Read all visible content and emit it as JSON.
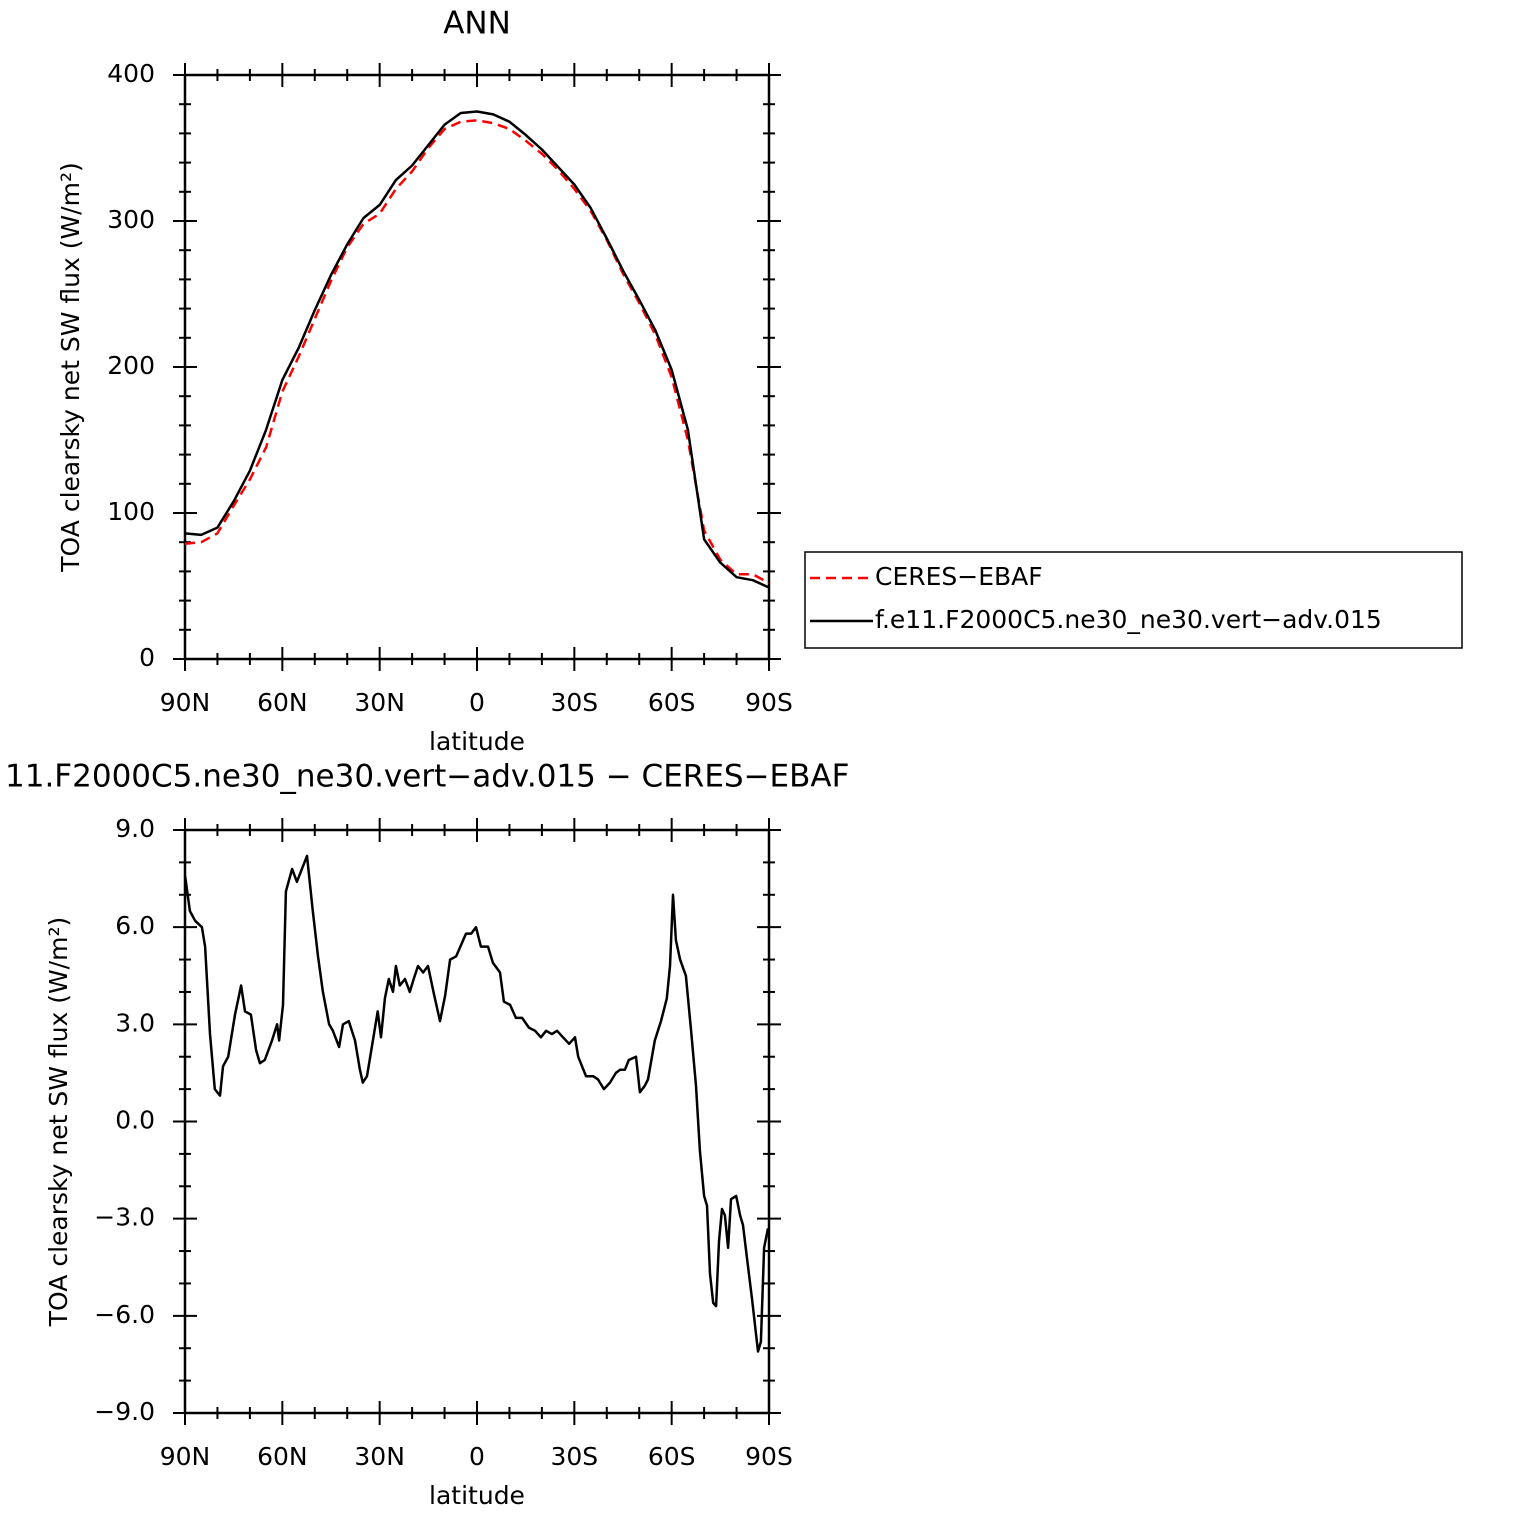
{
  "chart_data": [
    {
      "type": "line",
      "title": "ANN",
      "xlabel": "latitude",
      "ylabel": "TOA clearsky net SW flux (W/m²)",
      "x": [
        90,
        85,
        80,
        75,
        70,
        65,
        60,
        55,
        50,
        45,
        40,
        35,
        30,
        25,
        20,
        15,
        10,
        5,
        0,
        -5,
        -10,
        -15,
        -20,
        -25,
        -30,
        -35,
        -40,
        -45,
        -50,
        -55,
        -60,
        -65,
        -70,
        -75,
        -80,
        -85,
        -90
      ],
      "series": [
        {
          "name": "CERES−EBAF",
          "color": "#ff0000",
          "dashed": true,
          "values": [
            79,
            80,
            86,
            105,
            123,
            145,
            183,
            207,
            233,
            259,
            282,
            298,
            305,
            322,
            334,
            350,
            363,
            368,
            369,
            367,
            363,
            355,
            346,
            335,
            322,
            307,
            287,
            264,
            244,
            222,
            193,
            150,
            88,
            68,
            58,
            58,
            52
          ]
        },
        {
          "name": "f.e11.F2000C5.ne30_ne30.vert−adv.015",
          "color": "#000000",
          "dashed": false,
          "values": [
            86,
            85,
            90,
            108,
            129,
            157,
            191,
            213,
            239,
            263,
            284,
            302,
            311,
            328,
            338,
            352,
            366,
            374,
            375,
            373,
            368,
            359,
            349,
            337,
            325,
            309,
            288,
            266,
            246,
            225,
            198,
            157,
            82,
            66,
            56,
            54,
            49
          ]
        }
      ],
      "xlim": [
        90,
        -90
      ],
      "xticks": [
        {
          "value": 90,
          "label": "90N"
        },
        {
          "value": 60,
          "label": "60N"
        },
        {
          "value": 30,
          "label": "30N"
        },
        0,
        {
          "value": -30,
          "label": "30S"
        },
        {
          "value": -60,
          "label": "60S"
        },
        {
          "value": -90,
          "label": "90S"
        }
      ],
      "xminorticks": [
        80,
        70,
        50,
        40,
        20,
        10,
        -10,
        -20,
        -40,
        -50,
        -70,
        -80
      ],
      "ylim": [
        0,
        400
      ],
      "yticks": [
        0,
        100,
        200,
        300,
        400
      ],
      "yminorticks": [
        20,
        40,
        60,
        80,
        120,
        140,
        160,
        180,
        220,
        240,
        260,
        280,
        320,
        340,
        360,
        380
      ],
      "legend": "right"
    },
    {
      "type": "line",
      "title": "11.F2000C5.ne30_ne30.vert−adv.015 − CERES−EBAF",
      "xlabel": "latitude",
      "ylabel": "TOA clearsky net SW flux (W/m²)",
      "color": "#000000",
      "x": [
        90,
        88.5,
        86.9,
        84.8,
        83.8,
        82.3,
        80.8,
        79.2,
        78.3,
        76.7,
        74.6,
        72.7,
        71.5,
        69.7,
        68.1,
        66.9,
        65.4,
        63.2,
        61.6,
        61.0,
        59.8,
        58.9,
        57.0,
        55.5,
        52.4,
        50.6,
        49.0,
        47.5,
        45.6,
        44.4,
        42.5,
        41.3,
        39.5,
        37.6,
        36.1,
        35.2,
        33.9,
        32.1,
        30.6,
        29.6,
        28.4,
        27.2,
        25.9,
        25.0,
        23.8,
        22.2,
        20.7,
        19.5,
        18.2,
        16.6,
        15.1,
        13.2,
        11.4,
        9.8,
        8.3,
        6.4,
        3.4,
        1.8,
        0.3,
        -1.2,
        -3.4,
        -4.9,
        -7.1,
        -8.3,
        -10.2,
        -12.0,
        -13.9,
        -16.0,
        -17.9,
        -19.7,
        -21.3,
        -23.1,
        -24.7,
        -26.5,
        -28.4,
        -30.2,
        -31.2,
        -33.6,
        -35.8,
        -37.3,
        -39.1,
        -41.0,
        -42.8,
        -44.1,
        -45.6,
        -46.8,
        -49.0,
        -50.2,
        -51.7,
        -52.7,
        -54.8,
        -56.7,
        -58.5,
        -59.5,
        -60.4,
        -61.3,
        -62.6,
        -64.4,
        -66.0,
        -67.5,
        -68.7,
        -70.0,
        -70.9,
        -71.8,
        -72.8,
        -73.7,
        -74.6,
        -75.5,
        -76.4,
        -77.4,
        -78.3,
        -79.9,
        -81.1,
        -82.0,
        -83.2,
        -84.8,
        -86.6,
        -87.5,
        -88.5,
        -89.7
      ],
      "values": [
        7.6,
        6.5,
        6.2,
        6.0,
        5.4,
        2.7,
        1.0,
        0.8,
        1.7,
        2.0,
        3.3,
        4.2,
        3.4,
        3.3,
        2.2,
        1.8,
        1.9,
        2.5,
        3.0,
        2.5,
        3.6,
        7.1,
        7.8,
        7.4,
        8.2,
        6.5,
        5.1,
        4.0,
        3.0,
        2.8,
        2.3,
        3.0,
        3.1,
        2.5,
        1.6,
        1.2,
        1.4,
        2.5,
        3.4,
        2.6,
        3.8,
        4.4,
        4.0,
        4.8,
        4.2,
        4.4,
        4.0,
        4.4,
        4.8,
        4.6,
        4.8,
        3.9,
        3.1,
        3.9,
        5.0,
        5.1,
        5.8,
        5.8,
        6.0,
        5.4,
        5.4,
        4.9,
        4.6,
        3.7,
        3.6,
        3.2,
        3.2,
        2.9,
        2.8,
        2.6,
        2.8,
        2.7,
        2.8,
        2.6,
        2.4,
        2.6,
        2.0,
        1.4,
        1.4,
        1.3,
        1.0,
        1.2,
        1.5,
        1.6,
        1.6,
        1.9,
        2.0,
        0.9,
        1.1,
        1.3,
        2.5,
        3.1,
        3.8,
        4.8,
        7.0,
        5.6,
        5.0,
        4.5,
        2.8,
        1.1,
        -0.9,
        -2.3,
        -2.6,
        -4.7,
        -5.6,
        -5.7,
        -3.7,
        -2.7,
        -2.9,
        -3.9,
        -2.4,
        -2.3,
        -2.9,
        -3.2,
        -4.2,
        -5.5,
        -7.1,
        -6.8,
        -3.9,
        -3.3
      ],
      "xlim": [
        90,
        -90
      ],
      "xticks": [
        {
          "value": 90,
          "label": "90N"
        },
        {
          "value": 60,
          "label": "60N"
        },
        {
          "value": 30,
          "label": "30N"
        },
        0,
        {
          "value": -30,
          "label": "30S"
        },
        {
          "value": -60,
          "label": "60S"
        },
        {
          "value": -90,
          "label": "90S"
        }
      ],
      "xminorticks": [
        80,
        70,
        50,
        40,
        20,
        10,
        -10,
        -20,
        -40,
        -50,
        -70,
        -80
      ],
      "ylim": [
        -9,
        9
      ],
      "yticks": [
        {
          "value": -9,
          "label": "−9.0"
        },
        {
          "value": -6,
          "label": "−6.0"
        },
        {
          "value": -3,
          "label": "−3.0"
        },
        {
          "value": 0,
          "label": "0.0"
        },
        {
          "value": 3,
          "label": "3.0"
        },
        {
          "value": 6,
          "label": "6.0"
        },
        {
          "value": 9,
          "label": "9.0"
        }
      ],
      "yminorticks": [
        -8,
        -7,
        -5,
        -4,
        -2,
        -1,
        1,
        2,
        4,
        5,
        7,
        8
      ]
    }
  ]
}
